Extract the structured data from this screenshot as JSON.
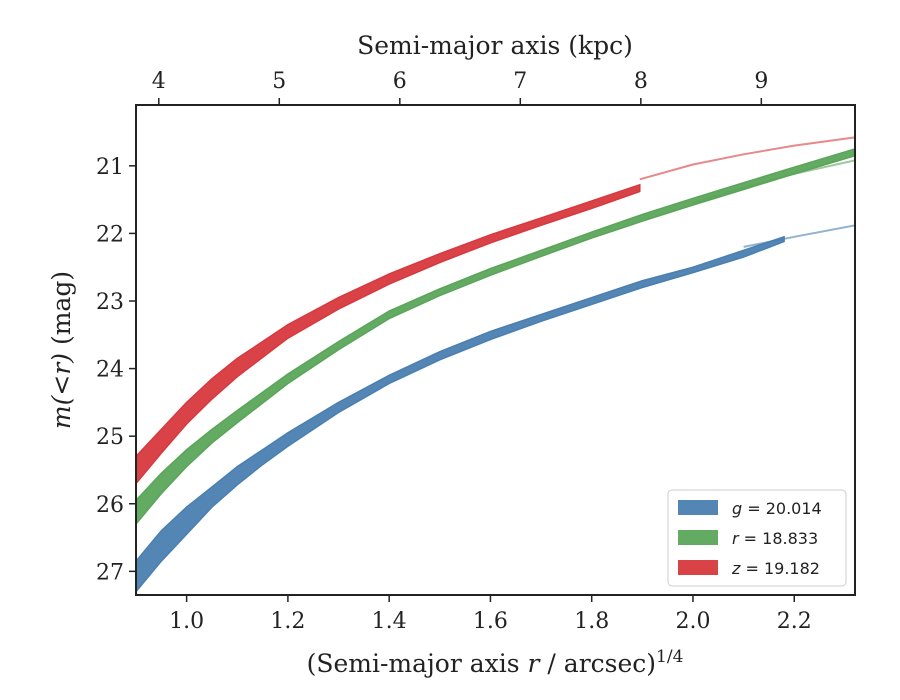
{
  "chart_data": {
    "type": "area",
    "xlabel": "(Semi-major axis r / arcsec)^1/4",
    "xlabel_parts": {
      "prefix": "(Semi-major axis ",
      "var": "r",
      "suffix": " / arcsec)",
      "sup": "1/4"
    },
    "ylabel": "m(<r) (mag)",
    "ylabel_parts": {
      "var": "m(<r)",
      "suffix": " (mag)"
    },
    "x2label": "Semi-major axis (kpc)",
    "xlim": [
      0.9,
      2.32
    ],
    "ylim": [
      27.35,
      20.1
    ],
    "y_inverted": true,
    "xticks": [
      "1.0",
      "1.2",
      "1.4",
      "1.6",
      "1.8",
      "2.0",
      "2.2"
    ],
    "yticks": [
      "21",
      "22",
      "23",
      "24",
      "25",
      "26",
      "27"
    ],
    "x2ticks": [
      "4",
      "5",
      "6",
      "7",
      "8",
      "9"
    ],
    "x2tick_positions": [
      0.945,
      1.183,
      1.421,
      1.659,
      1.897,
      2.135
    ],
    "grid": false,
    "legend_position": "lower-right",
    "series": [
      {
        "name": "g = 20.014",
        "label_var": "g",
        "label_value": "= 20.014",
        "color": "#4a7fb0",
        "band_x": [
          0.9,
          0.95,
          1.0,
          1.05,
          1.1,
          1.15,
          1.2,
          1.3,
          1.4,
          1.5,
          1.6,
          1.7,
          1.8,
          1.9,
          2.0,
          2.1,
          2.18
        ],
        "band_lower": [
          26.85,
          26.4,
          26.05,
          25.75,
          25.45,
          25.2,
          24.95,
          24.5,
          24.1,
          23.75,
          23.45,
          23.2,
          22.95,
          22.7,
          22.5,
          22.25,
          22.05
        ],
        "band_upper": [
          27.3,
          26.85,
          26.45,
          26.05,
          25.72,
          25.42,
          25.15,
          24.65,
          24.22,
          23.87,
          23.57,
          23.3,
          23.05,
          22.8,
          22.58,
          22.35,
          22.12
        ],
        "extrap_x": [
          2.1,
          2.2,
          2.32
        ],
        "extrap_y": [
          22.2,
          22.05,
          21.88
        ]
      },
      {
        "name": "r = 18.833",
        "label_var": "r",
        "label_value": "= 18.833",
        "color": "#5ba55a",
        "band_x": [
          0.9,
          0.95,
          1.0,
          1.05,
          1.1,
          1.2,
          1.3,
          1.4,
          1.5,
          1.6,
          1.7,
          1.8,
          1.9,
          2.0,
          2.1,
          2.2,
          2.32
        ],
        "band_lower": [
          25.95,
          25.55,
          25.2,
          24.9,
          24.62,
          24.08,
          23.6,
          23.15,
          22.82,
          22.52,
          22.25,
          21.98,
          21.72,
          21.48,
          21.25,
          21.02,
          20.75
        ],
        "band_upper": [
          26.3,
          25.85,
          25.45,
          25.1,
          24.8,
          24.22,
          23.72,
          23.26,
          22.92,
          22.62,
          22.34,
          22.07,
          21.82,
          21.58,
          21.35,
          21.12,
          20.85
        ],
        "extrap_x": [
          2.0,
          2.1,
          2.2,
          2.32
        ],
        "extrap_y": [
          21.55,
          21.32,
          21.12,
          20.92
        ]
      },
      {
        "name": "z = 19.182",
        "label_var": "z",
        "label_value": "= 19.182",
        "color": "#d7393e",
        "band_x": [
          0.9,
          0.95,
          1.0,
          1.05,
          1.1,
          1.2,
          1.3,
          1.4,
          1.5,
          1.6,
          1.7,
          1.8,
          1.895
        ],
        "band_lower": [
          25.3,
          24.9,
          24.5,
          24.15,
          23.85,
          23.35,
          22.95,
          22.6,
          22.3,
          22.02,
          21.77,
          21.52,
          21.28
        ],
        "band_upper": [
          25.7,
          25.25,
          24.82,
          24.45,
          24.12,
          23.55,
          23.12,
          22.75,
          22.43,
          22.14,
          21.88,
          21.63,
          21.38
        ],
        "extrap_x": [
          1.895,
          2.0,
          2.1,
          2.2,
          2.32
        ],
        "extrap_y": [
          21.2,
          20.98,
          20.83,
          20.7,
          20.58
        ]
      }
    ]
  }
}
